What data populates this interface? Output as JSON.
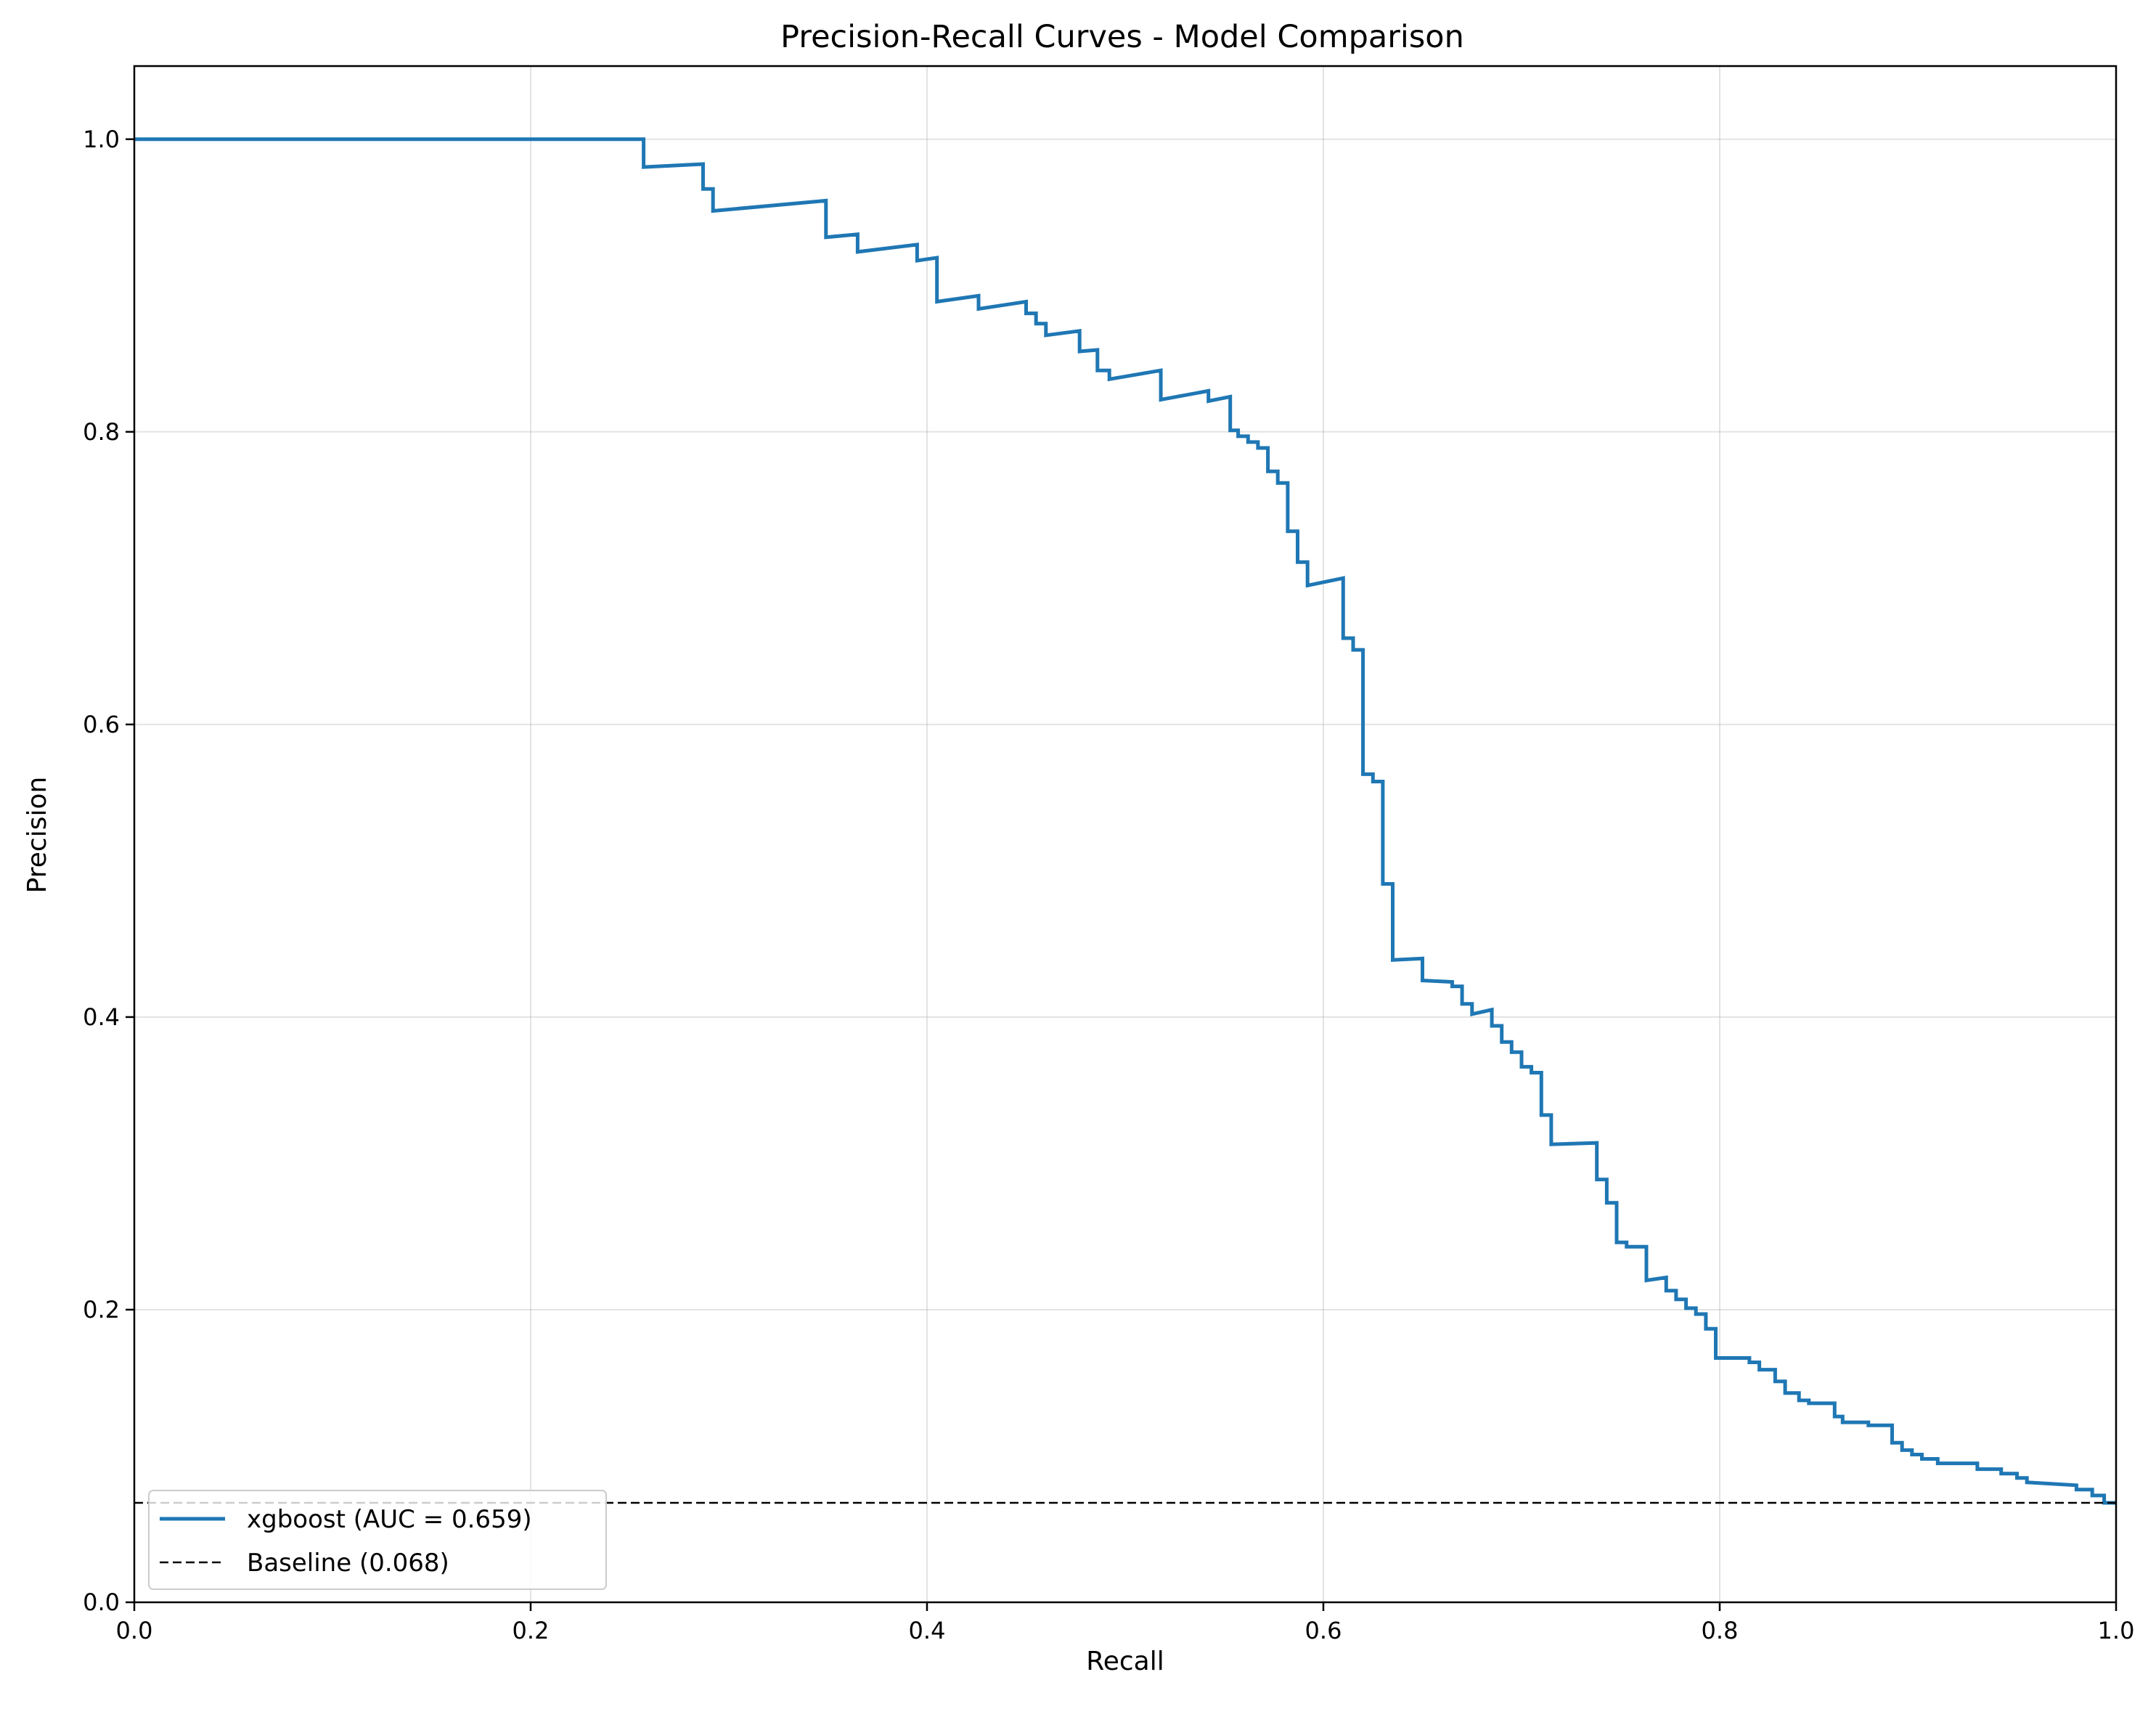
{
  "chart_data": {
    "type": "line",
    "title": "Precision-Recall Curves - Model Comparison",
    "xlabel": "Recall",
    "ylabel": "Precision",
    "xlim": [
      0.0,
      1.0
    ],
    "ylim": [
      0.0,
      1.05
    ],
    "xticks": [
      "0.0",
      "0.2",
      "0.4",
      "0.6",
      "0.8",
      "1.0"
    ],
    "yticks": [
      "0.0",
      "0.2",
      "0.4",
      "0.6",
      "0.8",
      "1.0"
    ],
    "grid": true,
    "legend_position": "lower-left",
    "colors": {
      "xgboost": "#1f77b4",
      "baseline": "#000000"
    },
    "series": [
      {
        "name": "xgboost (AUC = 0.659)",
        "style": "solid-step",
        "points": [
          [
            0.0,
            1.0
          ],
          [
            0.257,
            1.0
          ],
          [
            0.257,
            0.981
          ],
          [
            0.287,
            0.983
          ],
          [
            0.287,
            0.966
          ],
          [
            0.292,
            0.966
          ],
          [
            0.292,
            0.951
          ],
          [
            0.349,
            0.958
          ],
          [
            0.349,
            0.933
          ],
          [
            0.365,
            0.935
          ],
          [
            0.365,
            0.923
          ],
          [
            0.395,
            0.928
          ],
          [
            0.395,
            0.917
          ],
          [
            0.405,
            0.919
          ],
          [
            0.405,
            0.889
          ],
          [
            0.426,
            0.893
          ],
          [
            0.426,
            0.884
          ],
          [
            0.45,
            0.889
          ],
          [
            0.45,
            0.881
          ],
          [
            0.455,
            0.881
          ],
          [
            0.455,
            0.874
          ],
          [
            0.46,
            0.874
          ],
          [
            0.46,
            0.866
          ],
          [
            0.477,
            0.869
          ],
          [
            0.477,
            0.855
          ],
          [
            0.486,
            0.856
          ],
          [
            0.486,
            0.842
          ],
          [
            0.492,
            0.842
          ],
          [
            0.492,
            0.836
          ],
          [
            0.518,
            0.842
          ],
          [
            0.518,
            0.822
          ],
          [
            0.542,
            0.828
          ],
          [
            0.542,
            0.821
          ],
          [
            0.553,
            0.824
          ],
          [
            0.553,
            0.801
          ],
          [
            0.557,
            0.801
          ],
          [
            0.557,
            0.797
          ],
          [
            0.562,
            0.797
          ],
          [
            0.562,
            0.793
          ],
          [
            0.567,
            0.793
          ],
          [
            0.567,
            0.789
          ],
          [
            0.572,
            0.789
          ],
          [
            0.572,
            0.773
          ],
          [
            0.577,
            0.773
          ],
          [
            0.577,
            0.765
          ],
          [
            0.582,
            0.765
          ],
          [
            0.582,
            0.732
          ],
          [
            0.587,
            0.732
          ],
          [
            0.587,
            0.711
          ],
          [
            0.592,
            0.711
          ],
          [
            0.592,
            0.695
          ],
          [
            0.61,
            0.7
          ],
          [
            0.61,
            0.659
          ],
          [
            0.615,
            0.659
          ],
          [
            0.615,
            0.651
          ],
          [
            0.62,
            0.651
          ],
          [
            0.62,
            0.566
          ],
          [
            0.625,
            0.566
          ],
          [
            0.625,
            0.561
          ],
          [
            0.63,
            0.561
          ],
          [
            0.63,
            0.491
          ],
          [
            0.635,
            0.491
          ],
          [
            0.635,
            0.439
          ],
          [
            0.65,
            0.44
          ],
          [
            0.65,
            0.425
          ],
          [
            0.665,
            0.424
          ],
          [
            0.665,
            0.421
          ],
          [
            0.67,
            0.421
          ],
          [
            0.67,
            0.409
          ],
          [
            0.675,
            0.409
          ],
          [
            0.675,
            0.402
          ],
          [
            0.685,
            0.405
          ],
          [
            0.685,
            0.394
          ],
          [
            0.69,
            0.394
          ],
          [
            0.69,
            0.383
          ],
          [
            0.695,
            0.383
          ],
          [
            0.695,
            0.376
          ],
          [
            0.7,
            0.376
          ],
          [
            0.7,
            0.366
          ],
          [
            0.705,
            0.366
          ],
          [
            0.705,
            0.362
          ],
          [
            0.71,
            0.362
          ],
          [
            0.71,
            0.333
          ],
          [
            0.715,
            0.333
          ],
          [
            0.715,
            0.313
          ],
          [
            0.738,
            0.314
          ],
          [
            0.738,
            0.289
          ],
          [
            0.743,
            0.289
          ],
          [
            0.743,
            0.273
          ],
          [
            0.748,
            0.273
          ],
          [
            0.748,
            0.246
          ],
          [
            0.753,
            0.246
          ],
          [
            0.753,
            0.243
          ],
          [
            0.763,
            0.243
          ],
          [
            0.763,
            0.22
          ],
          [
            0.773,
            0.222
          ],
          [
            0.773,
            0.213
          ],
          [
            0.778,
            0.213
          ],
          [
            0.778,
            0.207
          ],
          [
            0.783,
            0.207
          ],
          [
            0.783,
            0.201
          ],
          [
            0.788,
            0.201
          ],
          [
            0.788,
            0.197
          ],
          [
            0.793,
            0.197
          ],
          [
            0.793,
            0.187
          ],
          [
            0.798,
            0.187
          ],
          [
            0.798,
            0.167
          ],
          [
            0.815,
            0.167
          ],
          [
            0.815,
            0.164
          ],
          [
            0.82,
            0.164
          ],
          [
            0.82,
            0.159
          ],
          [
            0.828,
            0.159
          ],
          [
            0.828,
            0.151
          ],
          [
            0.833,
            0.151
          ],
          [
            0.833,
            0.143
          ],
          [
            0.84,
            0.143
          ],
          [
            0.84,
            0.138
          ],
          [
            0.845,
            0.138
          ],
          [
            0.845,
            0.136
          ],
          [
            0.858,
            0.136
          ],
          [
            0.858,
            0.127
          ],
          [
            0.862,
            0.127
          ],
          [
            0.862,
            0.123
          ],
          [
            0.875,
            0.123
          ],
          [
            0.875,
            0.121
          ],
          [
            0.887,
            0.121
          ],
          [
            0.887,
            0.109
          ],
          [
            0.892,
            0.109
          ],
          [
            0.892,
            0.104
          ],
          [
            0.897,
            0.104
          ],
          [
            0.897,
            0.101
          ],
          [
            0.902,
            0.101
          ],
          [
            0.902,
            0.098
          ],
          [
            0.91,
            0.098
          ],
          [
            0.91,
            0.095
          ],
          [
            0.93,
            0.095
          ],
          [
            0.93,
            0.091
          ],
          [
            0.942,
            0.091
          ],
          [
            0.942,
            0.088
          ],
          [
            0.95,
            0.088
          ],
          [
            0.95,
            0.085
          ],
          [
            0.955,
            0.085
          ],
          [
            0.955,
            0.082
          ],
          [
            0.98,
            0.08
          ],
          [
            0.98,
            0.077
          ],
          [
            0.988,
            0.077
          ],
          [
            0.988,
            0.073
          ],
          [
            0.994,
            0.073
          ],
          [
            0.994,
            0.068
          ],
          [
            1.0,
            0.068
          ]
        ]
      },
      {
        "name": "Baseline (0.068)",
        "style": "dashed",
        "points": [
          [
            0.0,
            0.068
          ],
          [
            1.0,
            0.068
          ]
        ]
      }
    ]
  }
}
